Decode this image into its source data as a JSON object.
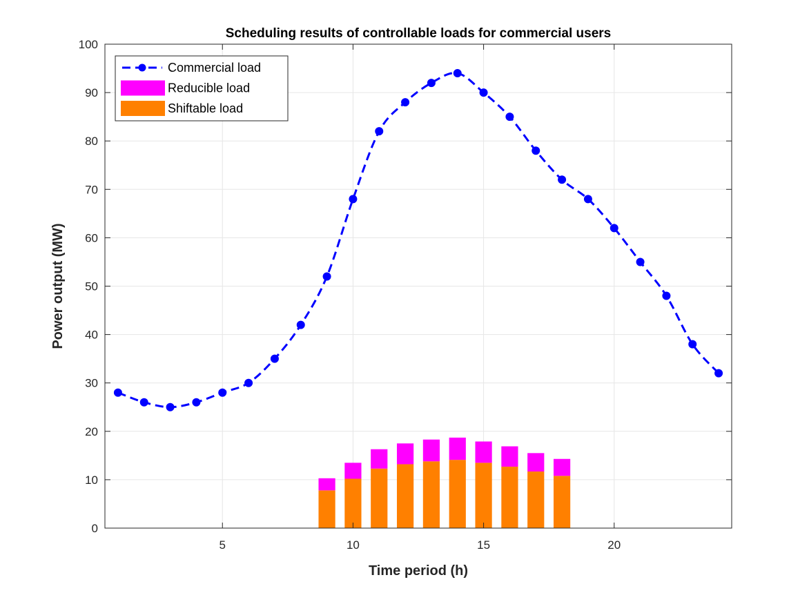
{
  "chart_data": {
    "type": "bar+line",
    "title": "Scheduling results of controllable loads for commercial users",
    "xlabel": "Time period (h)",
    "ylabel": "Power output (MW)",
    "xlim": [
      0.5,
      24.5
    ],
    "ylim": [
      0,
      100
    ],
    "xticks": [
      5,
      10,
      15,
      20
    ],
    "yticks": [
      0,
      10,
      20,
      30,
      40,
      50,
      60,
      70,
      80,
      90,
      100
    ],
    "grid": true,
    "legend_position": "top-left",
    "series": [
      {
        "name": "Commercial load",
        "kind": "line",
        "style": "dashed-with-markers",
        "color": "#0000FF",
        "x": [
          1,
          2,
          3,
          4,
          5,
          6,
          7,
          8,
          9,
          10,
          11,
          12,
          13,
          14,
          15,
          16,
          17,
          18,
          19,
          20,
          21,
          22,
          23,
          24
        ],
        "values": [
          28,
          26,
          25,
          26,
          28,
          30,
          35,
          42,
          52,
          68,
          82,
          88,
          92,
          94,
          90,
          85,
          78,
          72,
          68,
          62,
          55,
          48,
          38,
          32
        ]
      },
      {
        "name": "Reducible load",
        "kind": "stacked-bar",
        "color": "#FF00FF",
        "x": [
          9,
          10,
          11,
          12,
          13,
          14,
          15,
          16,
          17,
          18
        ],
        "values": [
          2.5,
          3.3,
          4.0,
          4.3,
          4.5,
          4.6,
          4.4,
          4.2,
          3.8,
          3.5
        ]
      },
      {
        "name": "Shiftable load",
        "kind": "stacked-bar",
        "color": "#FF8000",
        "x": [
          9,
          10,
          11,
          12,
          13,
          14,
          15,
          16,
          17,
          18
        ],
        "values": [
          7.8,
          10.2,
          12.3,
          13.2,
          13.8,
          14.1,
          13.5,
          12.7,
          11.7,
          10.8
        ]
      }
    ]
  }
}
